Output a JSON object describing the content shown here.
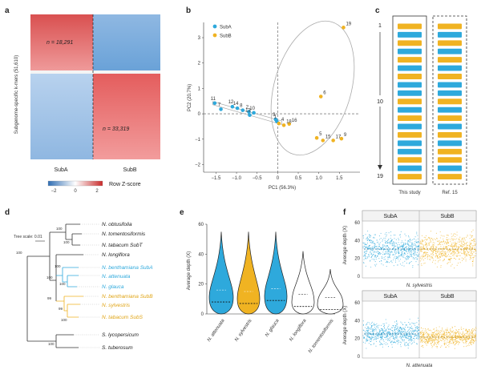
{
  "panels": {
    "a": "a",
    "b": "b",
    "c": "c",
    "d": "d",
    "e": "e",
    "f": "f"
  },
  "colors": {
    "subA": "#2ea9dc",
    "subB": "#f0b322",
    "red": "#d6262e",
    "blue": "#3d86c6",
    "grey": "#888888"
  },
  "heatmap": {
    "ylabel": "Subgenome-specific k-mers (51,610)",
    "n_top": "n = 18,291",
    "n_bottom": "n = 33,319",
    "col_labels": [
      "SubA",
      "SubB"
    ],
    "colorbar_label": "Row Z-score",
    "colorbar_ticks": [
      "−2",
      "0",
      "2"
    ]
  },
  "pca": {
    "legend": [
      "SubA",
      "SubB"
    ],
    "xlabel": "PC1 (56.3%)",
    "ylabel": "PC2 (20.7%)",
    "xticks": [
      "−1.5",
      "−1.0",
      "−0.5",
      "0",
      "0.5",
      "1.0",
      "1.5"
    ],
    "yticks": [
      "3",
      "2",
      "1",
      "0",
      "−1",
      "−2"
    ]
  },
  "chart_data": [
    {
      "type": "scatter",
      "panel": "b",
      "xlabel": "PC1 (56.3%)",
      "ylabel": "PC2 (20.7%)",
      "xlim": [
        -1.8,
        2.0
      ],
      "ylim": [
        -2.3,
        3.6
      ],
      "series": [
        {
          "name": "SubA",
          "points": [
            {
              "label": "11",
              "x": -1.53,
              "y": 0.42
            },
            {
              "label": "7",
              "x": -1.38,
              "y": 0.18
            },
            {
              "label": "12",
              "x": -1.1,
              "y": 0.28
            },
            {
              "label": "14",
              "x": -0.98,
              "y": 0.22
            },
            {
              "label": "8",
              "x": -0.85,
              "y": 0.14
            },
            {
              "label": "2",
              "x": -0.7,
              "y": 0.08
            },
            {
              "label": "13",
              "x": -0.68,
              "y": -0.05
            },
            {
              "label": "10",
              "x": -0.58,
              "y": 0.04
            },
            {
              "label": "3",
              "x": -0.05,
              "y": -0.22
            },
            {
              "label": "1",
              "x": -0.02,
              "y": -0.3
            }
          ]
        },
        {
          "name": "SubB",
          "points": [
            {
              "label": "19",
              "x": 1.6,
              "y": 3.4
            },
            {
              "label": "6",
              "x": 1.05,
              "y": 0.68
            },
            {
              "label": "16",
              "x": 0.28,
              "y": -0.4
            },
            {
              "label": "4",
              "x": 0.03,
              "y": -0.38
            },
            {
              "label": "18",
              "x": 0.15,
              "y": -0.45
            },
            {
              "label": "5",
              "x": 0.95,
              "y": -0.95
            },
            {
              "label": "15",
              "x": 1.1,
              "y": -1.05
            },
            {
              "label": "17",
              "x": 1.35,
              "y": -1.05
            },
            {
              "label": "9",
              "x": 1.55,
              "y": -0.98
            }
          ]
        }
      ]
    },
    {
      "type": "violin",
      "panel": "e",
      "ylabel": "Average depth (X)",
      "ylim": [
        0,
        60
      ],
      "yticks": [
        "0",
        "20",
        "40",
        "60"
      ],
      "categories": [
        "N. attenuata",
        "N. sylvestris",
        "N. glauca",
        "N. longiflora",
        "N. tomentosiformis"
      ],
      "medians": [
        8,
        7,
        9,
        5,
        3
      ]
    }
  ],
  "order_panel": {
    "top_label": "1",
    "mid_label": "10",
    "bottom_label": "19",
    "col_labels": [
      "This study",
      "Ref. 15"
    ],
    "this_study": [
      "B",
      "A",
      "B",
      "A",
      "B",
      "A",
      "B",
      "A",
      "A",
      "B",
      "A",
      "B",
      "A",
      "B",
      "A",
      "A",
      "B",
      "A",
      "B"
    ],
    "ref": [
      "B",
      "A",
      "B",
      "A",
      "B",
      "A",
      "B",
      "A",
      "A",
      "B",
      "A",
      "B",
      "A",
      "B",
      "A",
      "B",
      "B",
      "A",
      "B"
    ]
  },
  "tree": {
    "scale_label": "Tree scale: 0.01",
    "taxa": [
      {
        "name": "N. obtusifolia",
        "group": "none"
      },
      {
        "name": "N. tomentosiformis",
        "group": "none"
      },
      {
        "name": "N. tabacum SubT",
        "group": "none"
      },
      {
        "name": "N. longiflora",
        "group": "none"
      },
      {
        "name": "N. benthamiana SubA",
        "group": "A"
      },
      {
        "name": "N. attenuata",
        "group": "A"
      },
      {
        "name": "N. glauca",
        "group": "A"
      },
      {
        "name": "N. benthamiana SubB",
        "group": "B"
      },
      {
        "name": "N. sylvestris",
        "group": "B"
      },
      {
        "name": "N. tabacum SubS",
        "group": "B"
      },
      {
        "name": "S. lycopersicum",
        "group": "none"
      },
      {
        "name": "S. tuberosum",
        "group": "none"
      }
    ],
    "bootstrap": [
      "100",
      "100",
      "100",
      "100",
      "100",
      "100",
      "99",
      "99",
      "100",
      "100"
    ]
  },
  "depth": {
    "top_labels": [
      "SubA",
      "SubB"
    ],
    "top_species": "N. sylvestris",
    "bottom_labels": [
      "SubA",
      "SubB"
    ],
    "bottom_species": "N. attenuata",
    "ylabel": "Average depth (X)",
    "yticks": [
      "0",
      "20",
      "40",
      "60"
    ]
  }
}
